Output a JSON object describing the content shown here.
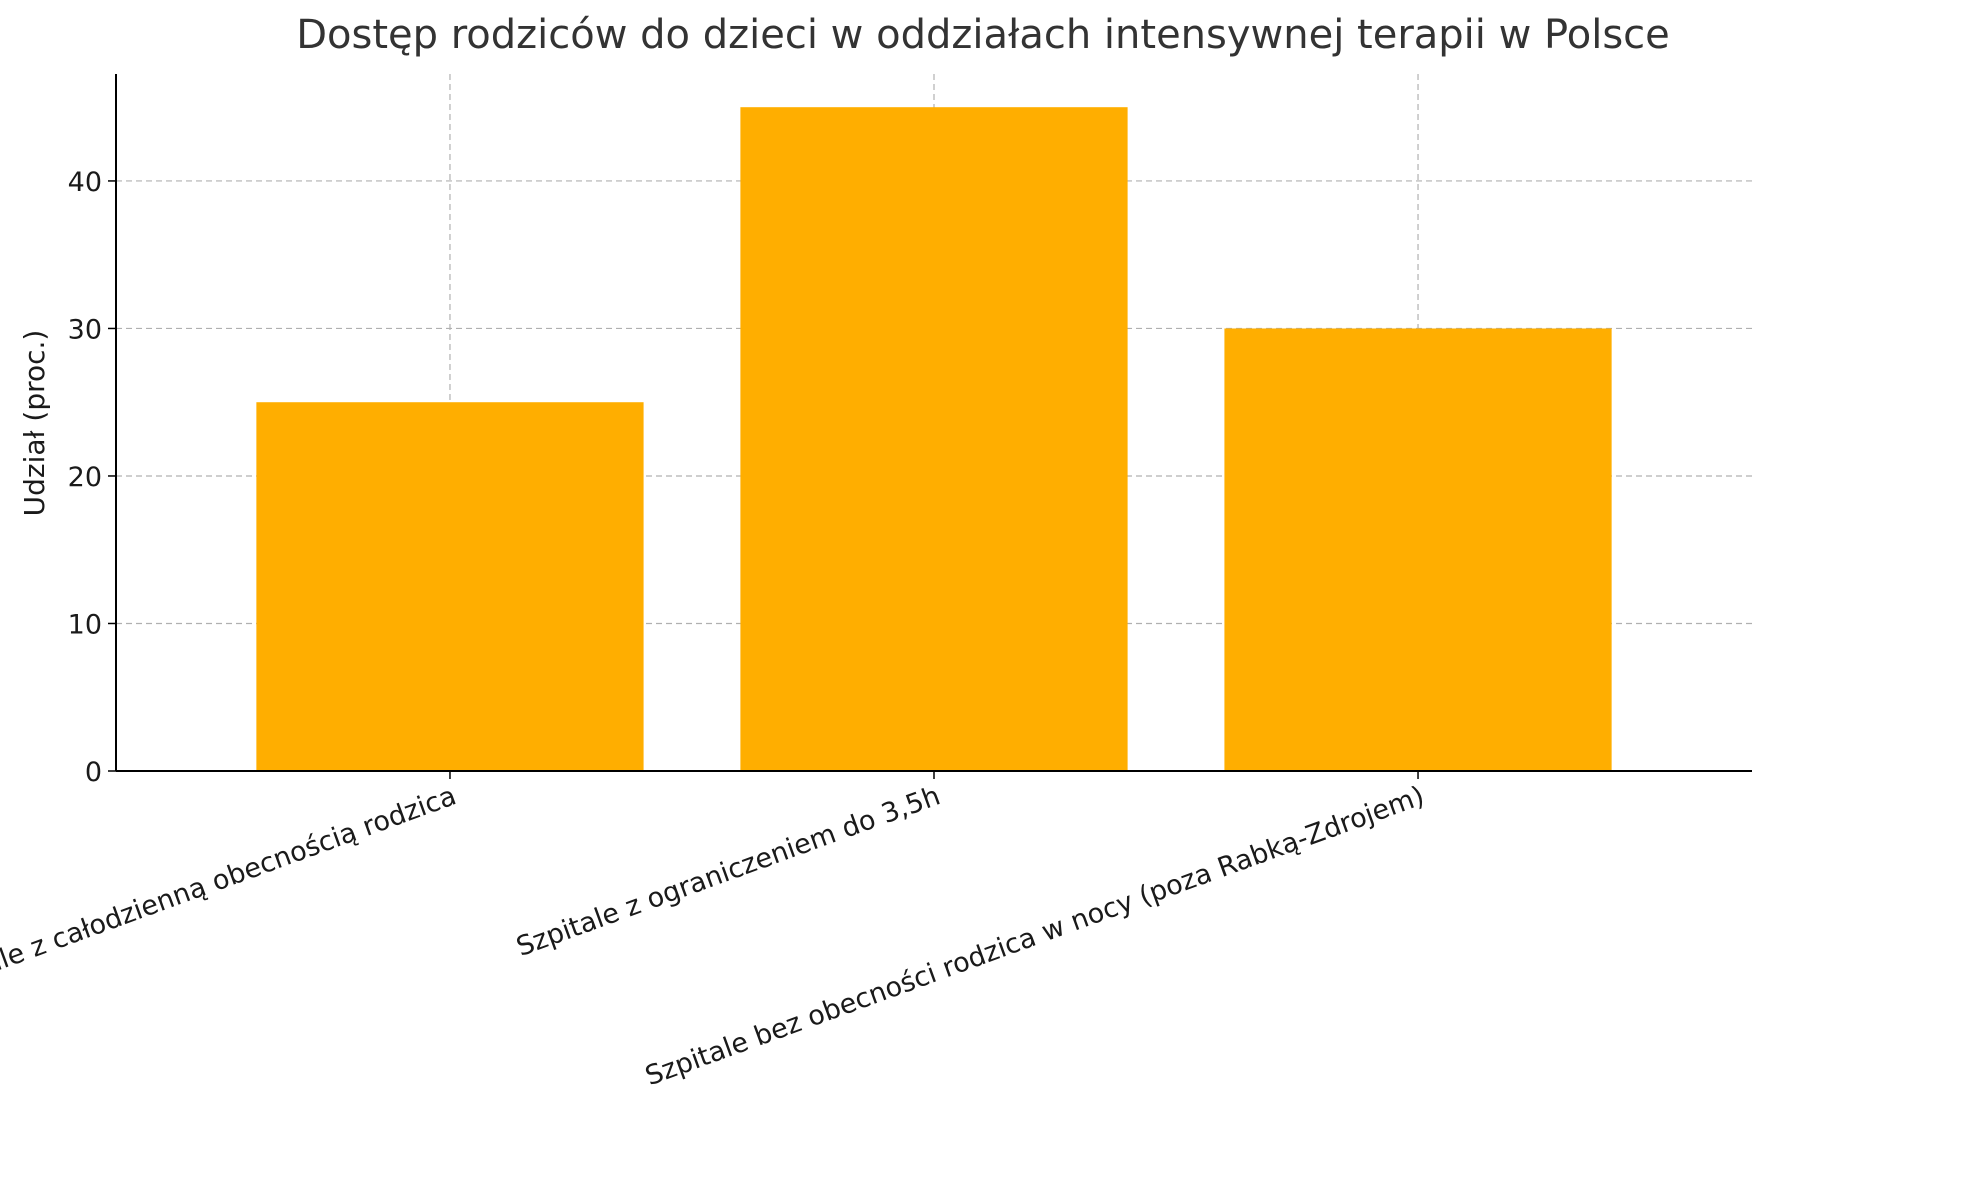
{
  "chart_data": {
    "type": "bar",
    "title": "Dostęp rodziców do dzieci w oddziałach intensywnej terapii w Polsce",
    "xlabel": "",
    "ylabel": "Udział (proc.)",
    "categories": [
      "Szpitale z całodzienną obecnością rodzica",
      "Szpitale z ograniczeniem do 3,5h",
      "Szpitale bez obecności rodzica w nocy (poza Rabką-Zdrojem)"
    ],
    "values": [
      25,
      45,
      30
    ],
    "yticks": [
      "0",
      "10",
      "20",
      "30",
      "40"
    ],
    "ylim": [
      0,
      47.25
    ],
    "grid": true,
    "bar_color": "#ffae00",
    "grid_color": "#b0b0b0",
    "axis_color": "#000000"
  }
}
